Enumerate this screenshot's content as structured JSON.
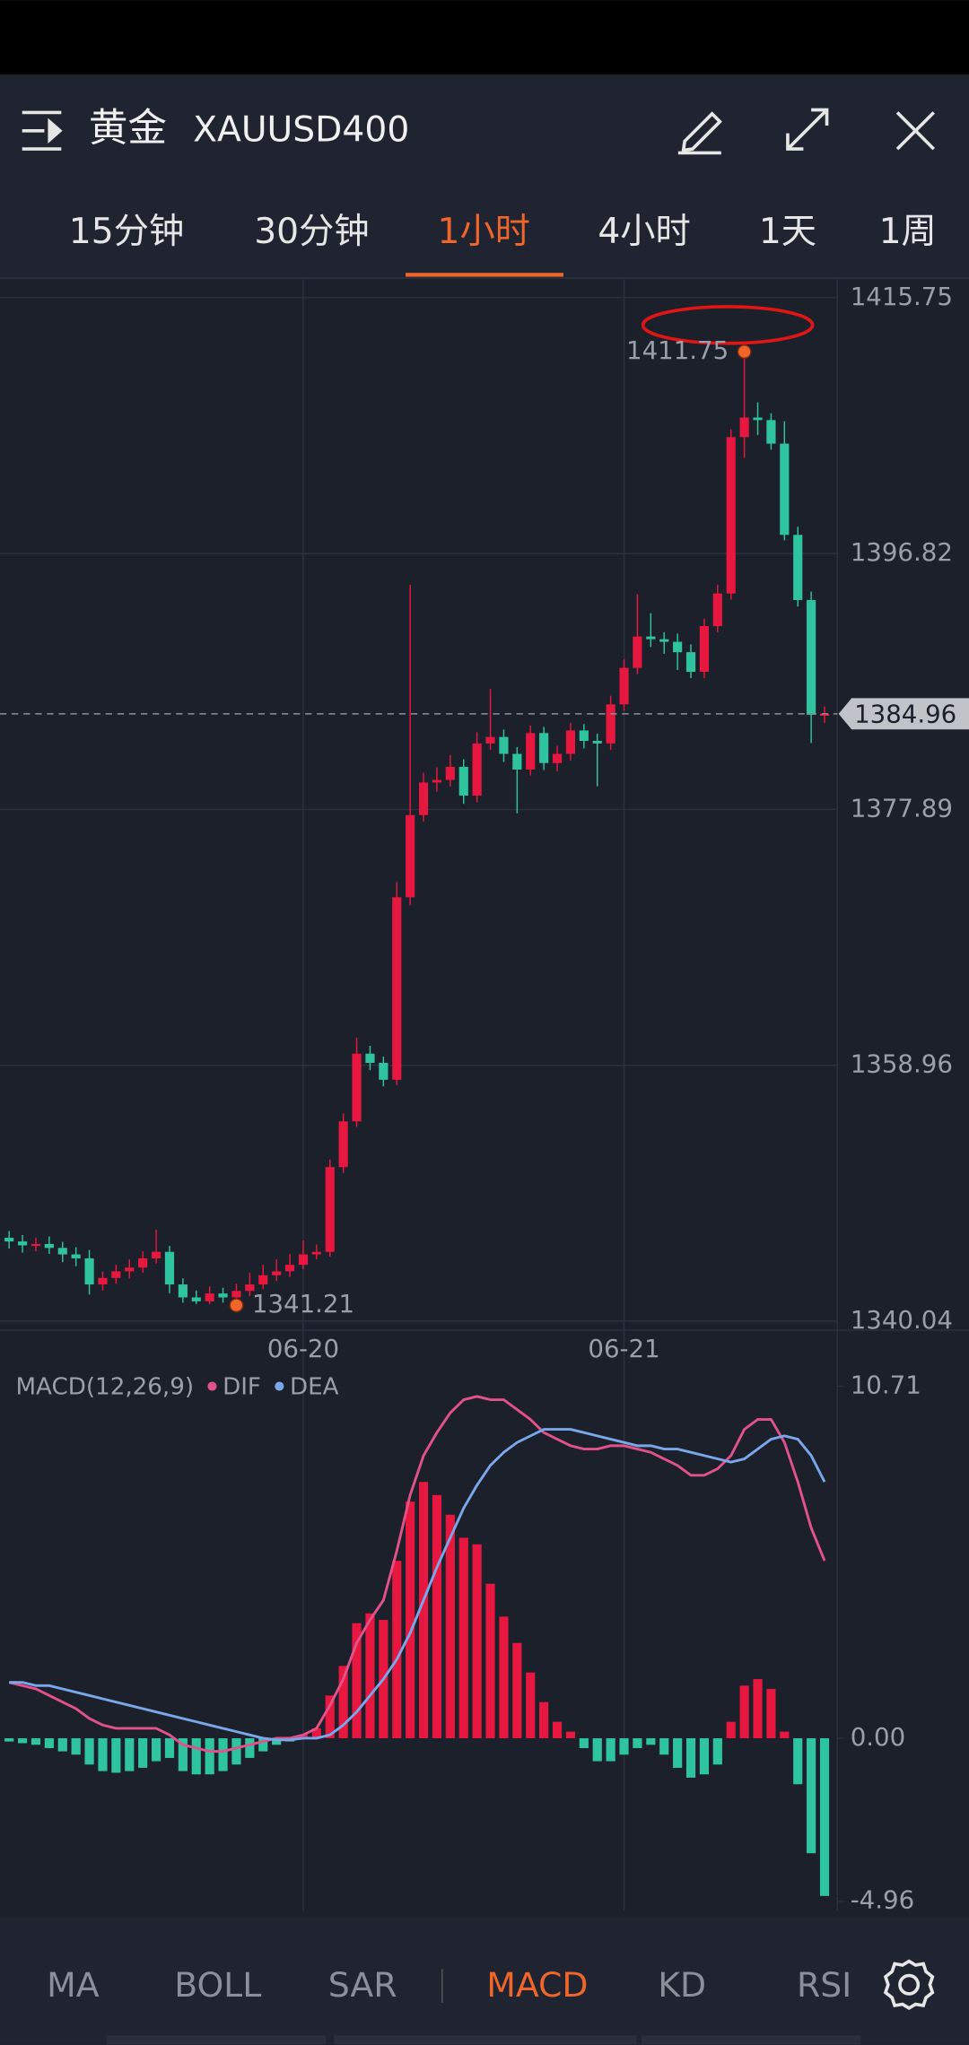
{
  "header": {
    "title": "黄金",
    "symbol": "XAUUSD400"
  },
  "tabs": {
    "items": [
      "15分钟",
      "30分钟",
      "1小时",
      "4小时",
      "1天",
      "1周"
    ],
    "active": 2
  },
  "chart_data": [
    {
      "type": "candlestick",
      "categories": [
        null,
        null,
        null,
        null,
        null,
        null,
        null,
        null,
        null,
        null,
        null,
        null,
        null,
        null,
        null,
        null,
        null,
        null,
        null,
        null,
        null,
        null,
        "06-20",
        null,
        null,
        null,
        null,
        null,
        null,
        null,
        null,
        null,
        null,
        null,
        null,
        null,
        null,
        null,
        null,
        null,
        null,
        null,
        null,
        null,
        null,
        null,
        "06-21",
        null,
        null,
        null,
        null,
        null,
        null,
        null,
        null,
        null,
        null,
        null,
        null,
        null,
        null,
        null
      ],
      "open": [
        1346.2,
        1345.93,
        1345.64,
        1345.74,
        1345.45,
        1344.97,
        1344.68,
        1342.75,
        1343.23,
        1343.72,
        1344.0,
        1344.68,
        1345.16,
        1342.75,
        1341.79,
        1341.5,
        1342.08,
        1341.79,
        1342.27,
        1342.75,
        1343.43,
        1343.72,
        1344.2,
        1344.97,
        1345.16,
        1351.43,
        1354.81,
        1359.82,
        1359.14,
        1357.89,
        1371.39,
        1377.47,
        1379.88,
        1380.07,
        1381.04,
        1378.91,
        1382.77,
        1383.25,
        1382.0,
        1380.84,
        1383.54,
        1381.32,
        1382.0,
        1383.73,
        1382.96,
        1382.77,
        1385.66,
        1388.36,
        1390.68,
        1390.48,
        1390.29,
        1389.52,
        1388.07,
        1391.45,
        1393.86,
        1405.43,
        1406.88,
        1406.69,
        1404.95,
        1398.2,
        1393.38,
        1384.89
      ],
      "high": [
        1346.7,
        1346.4,
        1346.2,
        1346.3,
        1345.9,
        1345.5,
        1345.3,
        1343.7,
        1344.2,
        1344.6,
        1345.2,
        1346.8,
        1345.6,
        1343.2,
        1342.3,
        1342.6,
        1342.5,
        1342.8,
        1343.6,
        1344.2,
        1344.6,
        1345.0,
        1346.0,
        1345.7,
        1352.0,
        1355.4,
        1361.0,
        1360.4,
        1359.6,
        1372.5,
        1394.5,
        1380.6,
        1381.0,
        1381.9,
        1381.6,
        1383.6,
        1386.8,
        1383.8,
        1382.5,
        1384.1,
        1384.0,
        1382.6,
        1384.3,
        1384.2,
        1383.5,
        1386.3,
        1389.0,
        1393.8,
        1392.4,
        1391.0,
        1390.9,
        1390.1,
        1392.0,
        1394.5,
        1406.0,
        1411.75,
        1408.0,
        1407.2,
        1406.6,
        1398.8,
        1394.0,
        1385.5
      ],
      "low": [
        1345.4,
        1345.1,
        1345.2,
        1345.0,
        1344.4,
        1344.1,
        1342.0,
        1342.3,
        1342.8,
        1343.2,
        1343.6,
        1344.3,
        1342.1,
        1341.4,
        1341.3,
        1341.3,
        1341.4,
        1341.21,
        1341.9,
        1342.4,
        1343.0,
        1343.3,
        1343.9,
        1344.6,
        1344.8,
        1351.0,
        1354.4,
        1358.6,
        1357.4,
        1357.5,
        1370.8,
        1377.0,
        1379.2,
        1379.6,
        1378.3,
        1378.4,
        1382.3,
        1381.4,
        1377.6,
        1380.4,
        1380.8,
        1380.7,
        1381.5,
        1382.4,
        1379.6,
        1382.3,
        1385.2,
        1387.9,
        1389.9,
        1389.4,
        1388.2,
        1387.6,
        1387.6,
        1391.0,
        1393.4,
        1403.9,
        1405.6,
        1404.5,
        1397.8,
        1392.9,
        1382.8,
        1384.3
      ],
      "close": [
        1345.93,
        1345.64,
        1345.74,
        1345.45,
        1344.97,
        1344.68,
        1342.75,
        1343.23,
        1343.72,
        1344.0,
        1344.68,
        1345.16,
        1342.75,
        1341.79,
        1341.5,
        1342.08,
        1341.79,
        1342.27,
        1342.75,
        1343.43,
        1343.72,
        1344.2,
        1344.97,
        1345.16,
        1351.43,
        1354.81,
        1359.82,
        1359.14,
        1357.89,
        1371.39,
        1377.47,
        1379.88,
        1380.07,
        1381.04,
        1378.91,
        1382.77,
        1383.25,
        1382.0,
        1380.84,
        1383.54,
        1381.32,
        1382.0,
        1383.73,
        1382.96,
        1382.77,
        1385.66,
        1388.36,
        1390.68,
        1390.48,
        1390.29,
        1389.52,
        1388.07,
        1391.45,
        1393.86,
        1405.43,
        1406.88,
        1406.69,
        1404.95,
        1398.2,
        1393.38,
        1384.89,
        1384.96
      ],
      "up_color": "#e8173f",
      "down_color": "#2ec4a0",
      "ylim": [
        1340.04,
        1415.75
      ],
      "yticks": [
        1340.04,
        1358.96,
        1377.89,
        1396.82,
        1415.75
      ],
      "grid": true
    },
    {
      "type": "macd",
      "title": "MACD(12,26,9)",
      "histogram": [
        -0.1,
        -0.15,
        -0.2,
        -0.3,
        -0.4,
        -0.5,
        -0.8,
        -1.0,
        -1.05,
        -1.0,
        -0.9,
        -0.7,
        -0.6,
        -1.0,
        -1.1,
        -1.1,
        -1.0,
        -0.8,
        -0.6,
        -0.4,
        -0.2,
        -0.1,
        0.1,
        0.3,
        1.3,
        2.2,
        3.5,
        3.8,
        3.6,
        5.4,
        7.2,
        7.8,
        7.4,
        6.8,
        6.1,
        5.9,
        4.7,
        3.7,
        2.9,
        2.0,
        1.1,
        0.5,
        0.2,
        -0.3,
        -0.7,
        -0.7,
        -0.5,
        -0.3,
        -0.2,
        -0.5,
        -0.9,
        -1.2,
        -1.1,
        -0.8,
        0.5,
        1.6,
        1.8,
        1.5,
        0.2,
        -1.4,
        -3.5,
        -4.8
      ],
      "series": [
        {
          "name": "DIF",
          "color": "#e2528a",
          "values": [
            1.7,
            1.6,
            1.5,
            1.3,
            1.1,
            0.9,
            0.6,
            0.4,
            0.3,
            0.3,
            0.3,
            0.3,
            0.1,
            -0.2,
            -0.3,
            -0.4,
            -0.4,
            -0.3,
            -0.2,
            -0.1,
            0.0,
            0.0,
            0.1,
            0.3,
            1.0,
            1.8,
            2.9,
            3.6,
            4.2,
            5.7,
            7.4,
            8.6,
            9.3,
            9.9,
            10.3,
            10.4,
            10.3,
            10.3,
            10.0,
            9.7,
            9.3,
            9.1,
            8.9,
            8.8,
            8.8,
            8.9,
            8.9,
            8.8,
            8.7,
            8.5,
            8.3,
            8.0,
            8.0,
            8.2,
            8.6,
            9.4,
            9.7,
            9.7,
            9.0,
            7.8,
            6.4,
            5.4
          ]
        },
        {
          "name": "DEA",
          "color": "#7aa6ea",
          "values": [
            1.7,
            1.7,
            1.6,
            1.6,
            1.5,
            1.4,
            1.3,
            1.2,
            1.1,
            1.0,
            0.9,
            0.8,
            0.7,
            0.6,
            0.5,
            0.4,
            0.3,
            0.2,
            0.1,
            0.0,
            -0.05,
            -0.05,
            0.0,
            0.0,
            0.1,
            0.4,
            0.8,
            1.3,
            1.8,
            2.4,
            3.2,
            4.2,
            5.2,
            6.1,
            7.0,
            7.7,
            8.3,
            8.7,
            9.0,
            9.2,
            9.4,
            9.4,
            9.4,
            9.3,
            9.2,
            9.1,
            9.0,
            8.9,
            8.9,
            8.8,
            8.8,
            8.7,
            8.6,
            8.5,
            8.4,
            8.5,
            8.8,
            9.1,
            9.2,
            9.1,
            8.6,
            7.8
          ]
        }
      ],
      "up_color": "#e8173f",
      "down_color": "#2ec4a0",
      "ylim": [
        -4.96,
        10.71
      ],
      "yticks": [
        -4.96,
        {
          "value": 0,
          "label": "0.00"
        },
        10.71
      ]
    }
  ],
  "indicators": {
    "items": [
      "MA",
      "BOLL",
      "SAR",
      "MACD",
      "KD",
      "RSI"
    ],
    "active": 3
  }
}
